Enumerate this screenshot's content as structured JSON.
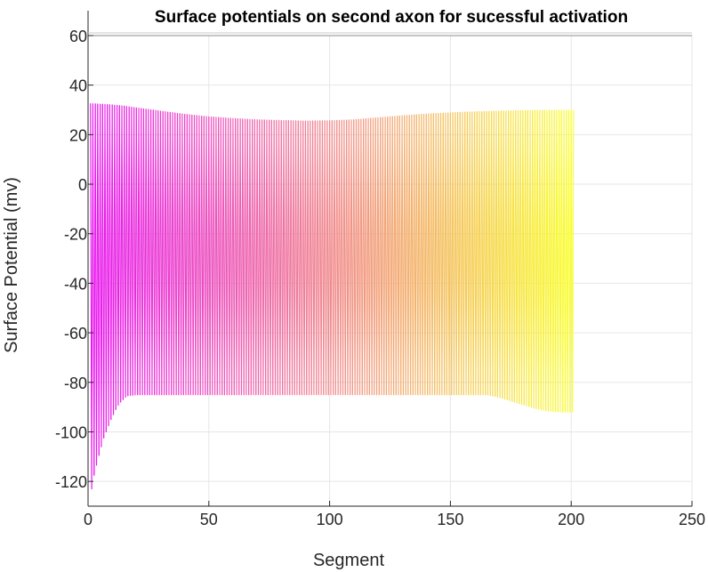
{
  "chart_data": {
    "type": "line",
    "title": "Surface potentials on second axon for sucessful activation",
    "xlabel": "Segment",
    "ylabel": "Surface Potential (mv)",
    "xlim": [
      0,
      250
    ],
    "ylim": [
      -130,
      60
    ],
    "xticks": [
      "0",
      "50",
      "100",
      "150",
      "200",
      "250"
    ],
    "yticks": [
      "-120",
      "-100",
      "-80",
      "-60",
      "-40",
      "-20",
      "0",
      "20",
      "40",
      "60"
    ],
    "grid": true,
    "color_start": "#e815f0",
    "color_end": "#f9ff2a",
    "series": [
      {
        "x_range": [
          1,
          201
        ],
        "upper_envelope": {
          "x": [
            1,
            5,
            10,
            15,
            20,
            30,
            40,
            50,
            60,
            70,
            80,
            90,
            100,
            110,
            120,
            130,
            140,
            150,
            160,
            170,
            180,
            190,
            201
          ],
          "y": [
            32.5,
            32.3,
            32,
            31.5,
            30.8,
            29.5,
            28.2,
            27.2,
            26.5,
            26,
            25.7,
            25.5,
            25.6,
            26,
            26.8,
            27.6,
            28.3,
            28.8,
            29.2,
            29.5,
            29.7,
            29.8,
            29.8
          ]
        },
        "lower_envelope": {
          "x": [
            1,
            2,
            3,
            4,
            5,
            6,
            7,
            8,
            9,
            10,
            11,
            12,
            13,
            14,
            15,
            16,
            20,
            50,
            100,
            150,
            165,
            170,
            175,
            180,
            185,
            190,
            195,
            201
          ],
          "y": [
            -127,
            -119,
            -116,
            -111,
            -108,
            -104,
            -101,
            -99,
            -96,
            -94,
            -92,
            -90,
            -88.5,
            -87.5,
            -86.5,
            -85.5,
            -85,
            -85,
            -85,
            -85,
            -85,
            -86,
            -87.5,
            -89,
            -90.5,
            -91.5,
            -92,
            -92
          ]
        }
      }
    ]
  }
}
